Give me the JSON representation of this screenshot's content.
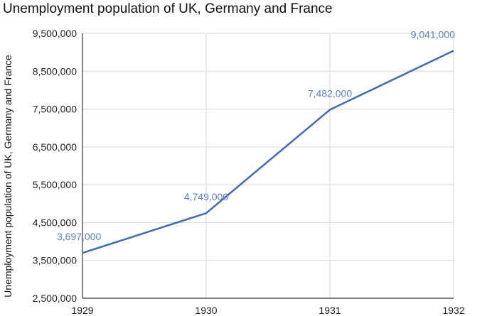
{
  "chart_data": {
    "type": "line",
    "title": "Unemployment population of UK, Germany and France",
    "xlabel": "",
    "ylabel": "Unemployment population of UK, Germany and France",
    "x": [
      "1929",
      "1930",
      "1931",
      "1932"
    ],
    "series": [
      {
        "values": [
          3697000,
          4749000,
          7482000,
          9041000
        ],
        "data_labels": [
          "3,697,000",
          "4,749,000",
          "7,482,000",
          "9,041,000"
        ]
      }
    ],
    "y_ticks": [
      "2,500,000",
      "3,500,000",
      "4,500,000",
      "5,500,000",
      "6,500,000",
      "7,500,000",
      "8,500,000",
      "9,500,000"
    ],
    "y_tick_values": [
      2500000,
      3500000,
      4500000,
      5500000,
      6500000,
      7500000,
      8500000,
      9500000
    ],
    "ylim": [
      2500000,
      9500000
    ],
    "grid": true,
    "legend": "none",
    "colors": {
      "line": "#4169b4",
      "label": "#5b7fc4",
      "grid": "#d9d9d9",
      "axis": "#333333"
    }
  }
}
